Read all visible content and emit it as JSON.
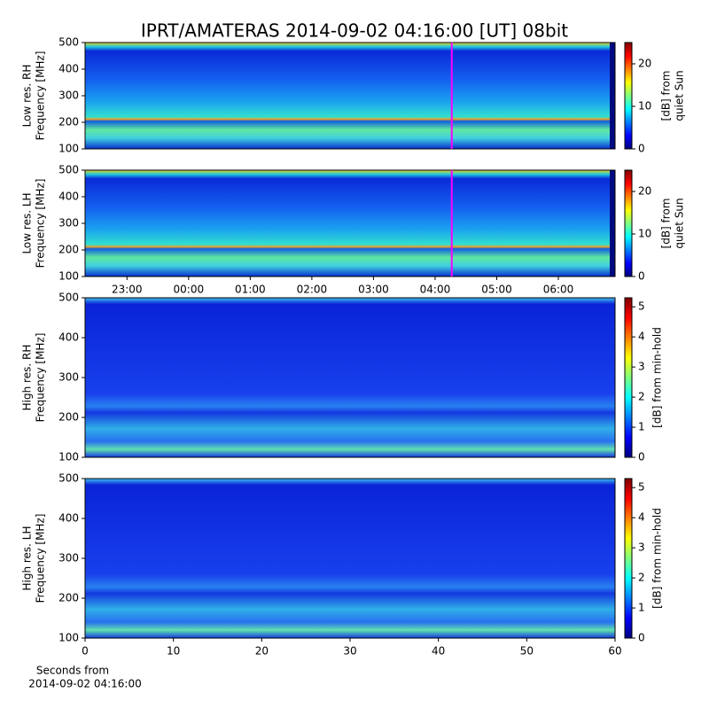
{
  "title": "IPRT/AMATERAS 2014-09-02 04:16:00 [UT]   08bit",
  "chart_data": [
    {
      "type": "heatmap",
      "ylabel": [
        "Low res. RH",
        "Frequency [MHz]"
      ],
      "ylim": [
        100,
        500
      ],
      "yticks": [
        100,
        200,
        300,
        400,
        500
      ],
      "xlim": [
        22.32,
        30.92
      ],
      "cursor": {
        "value": 28.27,
        "color": "#ff00ff"
      },
      "colorbar": {
        "label": [
          "[dB] from",
          "quiet Sun"
        ],
        "lim": [
          0,
          25
        ],
        "ticks": [
          0,
          10,
          20
        ]
      }
    },
    {
      "type": "heatmap",
      "ylabel": [
        "Low res. LH",
        "Frequency [MHz]"
      ],
      "ylim": [
        100,
        500
      ],
      "yticks": [
        100,
        200,
        300,
        400,
        500
      ],
      "xlim": [
        22.32,
        30.92
      ],
      "xticks": [
        {
          "value": 23,
          "label": "23:00"
        },
        {
          "value": 24,
          "label": "00:00"
        },
        {
          "value": 25,
          "label": "01:00"
        },
        {
          "value": 26,
          "label": "02:00"
        },
        {
          "value": 27,
          "label": "03:00"
        },
        {
          "value": 28,
          "label": "04:00"
        },
        {
          "value": 29,
          "label": "05:00"
        },
        {
          "value": 30,
          "label": "06:00"
        }
      ],
      "cursor": {
        "value": 28.27,
        "color": "#ff00ff"
      },
      "colorbar": {
        "label": [
          "[dB] from",
          "quiet Sun"
        ],
        "lim": [
          0,
          25
        ],
        "ticks": [
          0,
          10,
          20
        ]
      }
    },
    {
      "type": "heatmap",
      "ylabel": [
        "High res. RH",
        "Frequency [MHz]"
      ],
      "ylim": [
        100,
        500
      ],
      "yticks": [
        100,
        200,
        300,
        400,
        500
      ],
      "xlim": [
        0,
        60
      ],
      "colorbar": {
        "label": [
          "[dB] from min-hold"
        ],
        "lim": [
          0,
          5.3
        ],
        "ticks": [
          0,
          1,
          2,
          3,
          4,
          5
        ]
      }
    },
    {
      "type": "heatmap",
      "ylabel": [
        "High res. LH",
        "Frequency [MHz]"
      ],
      "ylim": [
        100,
        500
      ],
      "yticks": [
        100,
        200,
        300,
        400,
        500
      ],
      "xlim": [
        0,
        60
      ],
      "xticks": [
        0,
        10,
        20,
        30,
        40,
        50,
        60
      ],
      "xlabel": [
        "Seconds from",
        "2014-09-02 04:16:00"
      ],
      "colorbar": {
        "label": [
          "[dB] from min-hold"
        ],
        "lim": [
          0,
          5.3
        ],
        "ticks": [
          0,
          1,
          2,
          3,
          4,
          5
        ]
      }
    }
  ]
}
